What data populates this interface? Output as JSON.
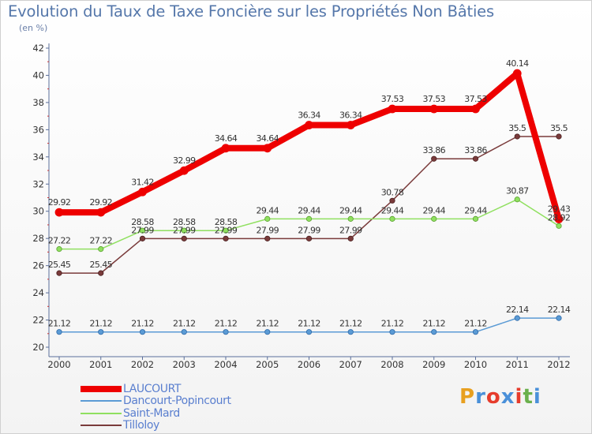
{
  "title": "Evolution du Taux de Taxe Foncière sur les Propriétés Non Bâties",
  "subtitle": "(en %)",
  "logo": {
    "text": "Proxiti",
    "colors": [
      "#e8a020",
      "#4a90d9",
      "#e63c2c",
      "#4a90d9",
      "#e63c2c",
      "#6ab04c",
      "#4a90d9"
    ]
  },
  "chart_data": {
    "type": "line",
    "title": "Evolution du Taux de Taxe Foncière sur les Propriétés Non Bâties",
    "ylabel": "(en %)",
    "xlabel": "",
    "ylim": [
      20,
      42
    ],
    "yticks": [
      "20",
      "22",
      "24",
      "26",
      "28",
      "30",
      "32",
      "34",
      "36",
      "38",
      "40",
      "42"
    ],
    "grid": false,
    "legend_position": "bottom-left",
    "categories": [
      "2000",
      "2001",
      "2002",
      "2003",
      "2004",
      "2005",
      "2006",
      "2007",
      "2008",
      "2009",
      "2010",
      "2011",
      "2012"
    ],
    "series": [
      {
        "name": "LAUCOURT",
        "color": "#ee0000",
        "values": [
          29.92,
          29.92,
          31.42,
          32.99,
          34.64,
          34.64,
          36.34,
          36.34,
          37.53,
          37.53,
          37.53,
          40.14,
          29.43
        ],
        "labels": [
          "29.92",
          "29.92",
          "31.42",
          "32.99",
          "34.64",
          "34.64",
          "36.34",
          "36.34",
          "37.53",
          "37.53",
          "37.53",
          "40.14",
          "29.43"
        ]
      },
      {
        "name": "Dancourt-Popincourt",
        "color": "#5b9bd5",
        "values": [
          21.12,
          21.12,
          21.12,
          21.12,
          21.12,
          21.12,
          21.12,
          21.12,
          21.12,
          21.12,
          21.12,
          22.14,
          22.14
        ],
        "labels": [
          "21.12",
          "21.12",
          "21.12",
          "21.12",
          "21.12",
          "21.12",
          "21.12",
          "21.12",
          "21.12",
          "21.12",
          "21.12",
          "22.14",
          "22.14"
        ]
      },
      {
        "name": "Saint-Mard",
        "color": "#90e060",
        "values": [
          27.22,
          27.22,
          28.58,
          28.58,
          28.58,
          29.44,
          29.44,
          29.44,
          29.44,
          29.44,
          29.44,
          30.87,
          28.92
        ],
        "labels": [
          "27.22",
          "27.22",
          "28.58",
          "28.58",
          "28.58",
          "29.44",
          "29.44",
          "29.44",
          "29.44",
          "29.44",
          "29.44",
          "30.87",
          "28.92"
        ]
      },
      {
        "name": "Tilloloy",
        "color": "#7a3b3b",
        "values": [
          25.45,
          25.45,
          27.99,
          27.99,
          27.99,
          27.99,
          27.99,
          27.99,
          30.78,
          33.86,
          33.86,
          35.5,
          35.5
        ],
        "labels": [
          "25.45",
          "25.45",
          "27.99",
          "27.99",
          "27.99",
          "27.99",
          "27.99",
          "27.99",
          "30.78",
          "33.86",
          "33.86",
          "35.5",
          "35.5"
        ]
      }
    ]
  }
}
